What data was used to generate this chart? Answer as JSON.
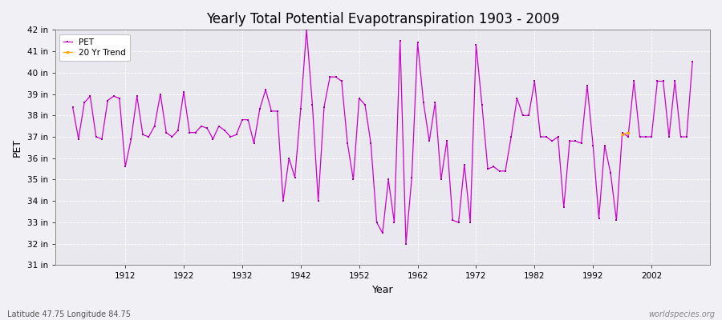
{
  "title": "Yearly Total Potential Evapotranspiration 1903 - 2009",
  "xlabel": "Year",
  "ylabel": "PET",
  "xlabel_bottom": "Latitude 47.75 Longitude 84.75",
  "watermark": "worldspecies.org",
  "background_color": "#f0f0f5",
  "plot_bg_color": "#e8e8ee",
  "line_color": "#cc00cc",
  "marker_color": "#990099",
  "trend_color": "#ffa500",
  "ylim": [
    31,
    42
  ],
  "yticks": [
    31,
    32,
    33,
    34,
    35,
    36,
    37,
    38,
    39,
    40,
    41,
    42
  ],
  "ytick_labels": [
    "31 in",
    "32 in",
    "33 in",
    "34 in",
    "35 in",
    "36 in",
    "37 in",
    "38 in",
    "39 in",
    "40 in",
    "41 in",
    "42 in"
  ],
  "xlim": [
    1900,
    2012
  ],
  "xticks": [
    1912,
    1922,
    1932,
    1942,
    1952,
    1962,
    1972,
    1982,
    1992,
    2002
  ],
  "years": [
    1903,
    1904,
    1905,
    1906,
    1907,
    1908,
    1909,
    1910,
    1911,
    1912,
    1913,
    1914,
    1915,
    1916,
    1917,
    1918,
    1919,
    1920,
    1921,
    1922,
    1923,
    1924,
    1925,
    1926,
    1927,
    1928,
    1929,
    1930,
    1931,
    1932,
    1933,
    1934,
    1935,
    1936,
    1937,
    1938,
    1939,
    1940,
    1941,
    1942,
    1943,
    1944,
    1945,
    1946,
    1947,
    1948,
    1949,
    1950,
    1951,
    1952,
    1953,
    1954,
    1955,
    1956,
    1957,
    1958,
    1959,
    1960,
    1961,
    1962,
    1963,
    1964,
    1965,
    1966,
    1967,
    1968,
    1969,
    1970,
    1971,
    1972,
    1973,
    1974,
    1975,
    1976,
    1977,
    1978,
    1979,
    1980,
    1981,
    1982,
    1983,
    1984,
    1985,
    1986,
    1987,
    1988,
    1989,
    1990,
    1991,
    1992,
    1993,
    1994,
    1995,
    1996,
    1997,
    1998,
    1999,
    2000,
    2001,
    2002,
    2003,
    2004,
    2005,
    2006,
    2007,
    2008,
    2009
  ],
  "values": [
    38.4,
    36.9,
    38.6,
    38.9,
    37.0,
    36.9,
    38.7,
    38.9,
    38.8,
    35.6,
    36.9,
    38.9,
    37.1,
    37.0,
    37.5,
    39.0,
    37.2,
    37.0,
    37.3,
    39.1,
    37.2,
    37.2,
    37.5,
    37.4,
    36.9,
    37.5,
    37.3,
    37.0,
    37.1,
    37.8,
    37.8,
    36.7,
    38.3,
    39.2,
    38.2,
    38.2,
    34.0,
    36.0,
    35.1,
    38.3,
    42.0,
    38.5,
    34.0,
    38.4,
    39.8,
    39.8,
    39.6,
    36.7,
    35.0,
    38.8,
    38.5,
    36.7,
    33.0,
    32.5,
    35.0,
    33.0,
    41.5,
    32.0,
    35.1,
    41.4,
    38.6,
    36.8,
    38.6,
    35.0,
    36.8,
    33.1,
    33.0,
    35.7,
    33.0,
    41.3,
    38.5,
    35.5,
    35.6,
    35.4,
    35.4,
    37.0,
    38.8,
    38.0,
    38.0,
    39.6,
    37.0,
    37.0,
    36.8,
    37.0,
    33.7,
    36.8,
    36.8,
    36.7,
    39.4,
    36.6,
    33.2,
    36.6,
    35.3,
    33.1,
    37.2,
    37.0,
    39.6,
    37.0,
    37.0,
    37.0,
    39.6,
    39.6,
    37.0,
    39.6,
    37.0,
    37.0,
    40.5
  ],
  "trend_years": [
    1997,
    1998
  ],
  "trend_values": [
    37.1,
    37.2
  ]
}
